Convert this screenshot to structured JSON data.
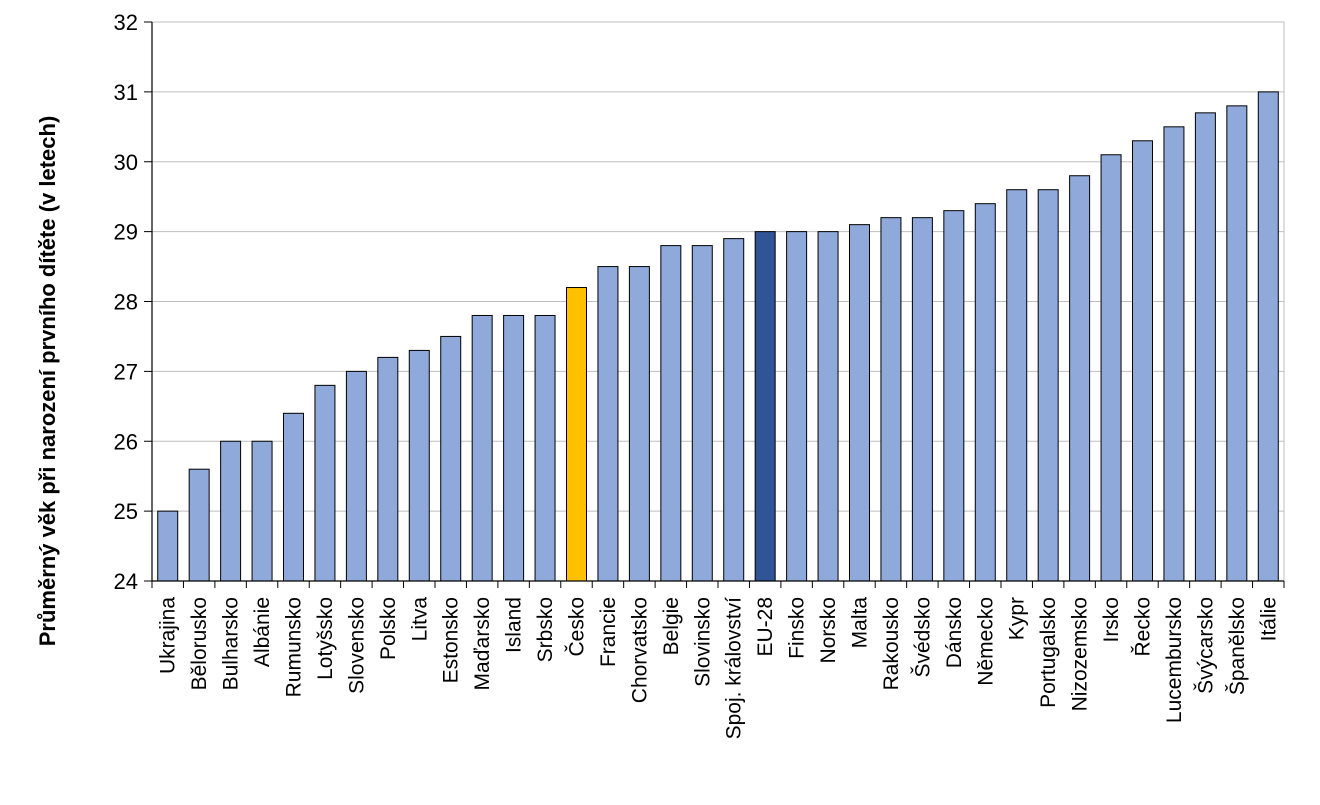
{
  "chart_data": {
    "type": "bar",
    "title": "",
    "xlabel": "",
    "ylabel": "Průměrný věk při narození prvního dítěte (v letech)",
    "ylim": [
      24,
      32
    ],
    "yticks": [
      24,
      25,
      26,
      27,
      28,
      29,
      30,
      31,
      32
    ],
    "grid": true,
    "legend": "none",
    "categories": [
      "Ukrajina",
      "Bělorusko",
      "Bulharsko",
      "Albánie",
      "Rumunsko",
      "Lotyšsko",
      "Slovensko",
      "Polsko",
      "Litva",
      "Estonsko",
      "Maďarsko",
      "Island",
      "Srbsko",
      "Česko",
      "Francie",
      "Chorvatsko",
      "Belgie",
      "Slovinsko",
      "Spoj. království",
      "EU-28",
      "Finsko",
      "Norsko",
      "Malta",
      "Rakousko",
      "Švédsko",
      "Dánsko",
      "Německo",
      "Kypr",
      "Portugalsko",
      "Nizozemsko",
      "Irsko",
      "Řecko",
      "Lucembursko",
      "Švýcarsko",
      "Španělsko",
      "Itálie"
    ],
    "values": [
      25.0,
      25.6,
      26.0,
      26.0,
      26.4,
      26.8,
      27.0,
      27.2,
      27.3,
      27.5,
      27.8,
      27.8,
      27.8,
      28.2,
      28.5,
      28.5,
      28.8,
      28.8,
      28.9,
      29.0,
      29.0,
      29.0,
      29.1,
      29.2,
      29.2,
      29.3,
      29.4,
      29.6,
      29.6,
      29.8,
      30.1,
      30.3,
      30.5,
      30.7,
      30.8,
      31.0
    ],
    "colors": {
      "default": "#8fa9db",
      "highlight_cz": "#ffc000",
      "highlight_eu": "#2f5597",
      "outline": "#000000",
      "grid": "#bfbfbf"
    },
    "highlights": {
      "Česko": "highlight_cz",
      "EU-28": "highlight_eu"
    }
  }
}
